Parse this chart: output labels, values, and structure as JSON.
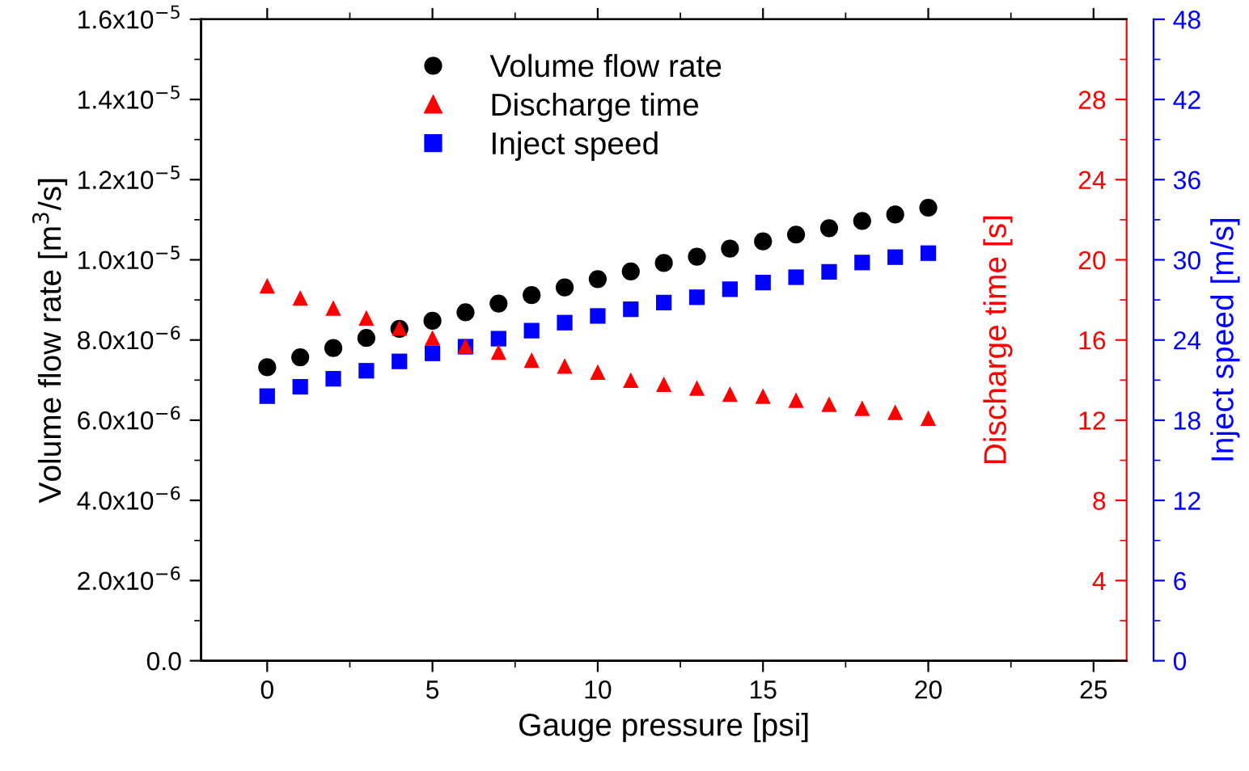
{
  "chart_data": {
    "type": "scatter",
    "xlabel": "Gauge pressure [psi]",
    "ylabel": "Volume flow rate [m$^{3}$/s]",
    "y2label": "Discharge time [s]",
    "y3label": "Inject speed [m/s]",
    "x": [
      0,
      1,
      2,
      3,
      4,
      5,
      6,
      7,
      8,
      9,
      10,
      11,
      12,
      13,
      14,
      15,
      16,
      17,
      18,
      19,
      20
    ],
    "xlim": [
      -2,
      26
    ],
    "xticks": [
      0,
      5,
      10,
      15,
      20,
      25
    ],
    "ylim": [
      0,
      1.6e-05
    ],
    "yticks": [
      {
        "value": 0,
        "label": "0.0"
      },
      {
        "value": 2e-06,
        "label": "2.0x10$^{−6}$"
      },
      {
        "value": 4e-06,
        "label": "4.0x10$^{−6}$"
      },
      {
        "value": 6e-06,
        "label": "6.0x10$^{−6}$"
      },
      {
        "value": 8e-06,
        "label": "8.0x10$^{−6}$"
      },
      {
        "value": 1e-05,
        "label": "1.0x10$^{−5}$"
      },
      {
        "value": 1.2e-05,
        "label": "1.2x10$^{−5}$"
      },
      {
        "value": 1.4e-05,
        "label": "1.4x10$^{−5}$"
      },
      {
        "value": 1.6e-05,
        "label": "1.6x10$^{−5}$"
      }
    ],
    "y2lim": [
      0,
      32
    ],
    "y2ticks": [
      {
        "value": 0,
        "label": null
      },
      4,
      8,
      12,
      16,
      20,
      24,
      28,
      {
        "value": 32,
        "label": null
      }
    ],
    "y3lim": [
      0,
      48
    ],
    "y3ticks": [
      0,
      6,
      12,
      18,
      24,
      30,
      36,
      42,
      48
    ],
    "grid": false,
    "legend": "top",
    "series": [
      {
        "name": "Volume flow rate",
        "color": "#000000",
        "marker": "circle",
        "values": [
          7.32e-06,
          7.57e-06,
          7.8e-06,
          8.05e-06,
          8.28e-06,
          8.48e-06,
          8.69e-06,
          8.91e-06,
          9.12e-06,
          9.31e-06,
          9.52e-06,
          9.71e-06,
          9.92e-06,
          1.008e-05,
          1.028e-05,
          1.046e-05,
          1.063e-05,
          1.079e-05,
          1.097e-05,
          1.113e-05,
          1.13e-05
        ]
      },
      {
        "name": "Discharge time",
        "color": "#ff0000",
        "marker": "triangle",
        "axis": "y2",
        "values": [
          18.7,
          18.1,
          17.6,
          17.1,
          16.6,
          16.1,
          15.7,
          15.4,
          15.0,
          14.7,
          14.4,
          14.0,
          13.8,
          13.6,
          13.3,
          13.2,
          13.0,
          12.8,
          12.6,
          12.4,
          12.1
        ]
      },
      {
        "name": "Inject speed",
        "color": "#0000ff",
        "marker": "square",
        "axis": "y3",
        "values": [
          19.8,
          20.5,
          21.1,
          21.7,
          22.4,
          23.0,
          23.5,
          24.1,
          24.7,
          25.3,
          25.8,
          26.3,
          26.8,
          27.2,
          27.8,
          28.3,
          28.7,
          29.1,
          29.8,
          30.2,
          30.5
        ]
      }
    ]
  }
}
